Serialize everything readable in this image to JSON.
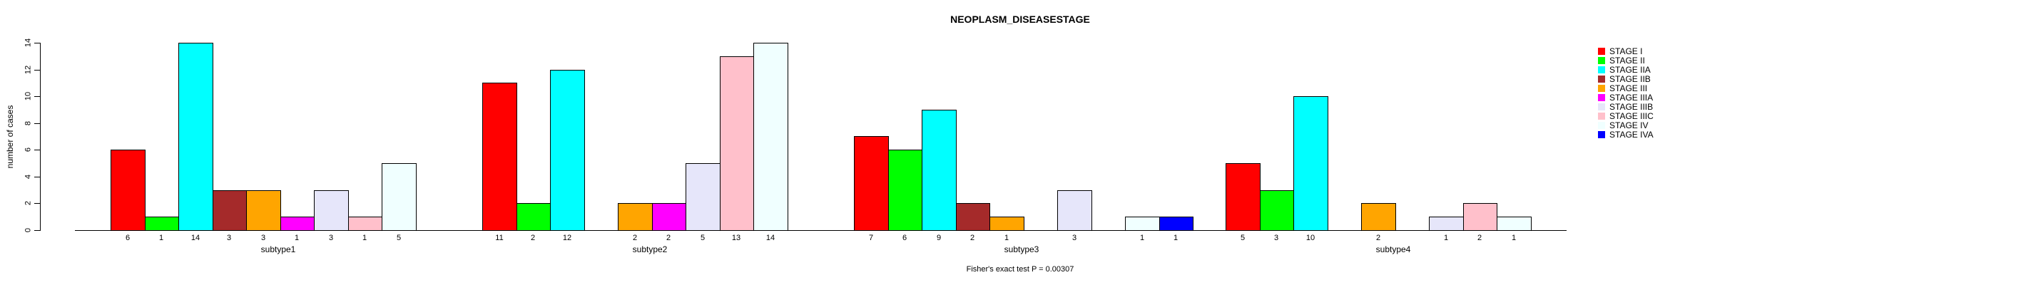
{
  "chart_data": {
    "type": "bar",
    "title": "NEOPLASM_DISEASESTAGE",
    "ylabel": "number of cases",
    "xlabel": "",
    "ylim": [
      0,
      14
    ],
    "yticks": [
      0,
      2,
      4,
      6,
      8,
      10,
      12,
      14
    ],
    "grid": false,
    "legend_position": "right",
    "bar_value_labels": "value printed under x-axis for each nonzero bar; zero-count stages leave an empty slot",
    "groups": [
      "subtype1",
      "subtype2",
      "subtype3",
      "subtype4"
    ],
    "series": [
      {
        "name": "STAGE I",
        "color": "#FF0000",
        "values": [
          6,
          11,
          7,
          5
        ]
      },
      {
        "name": "STAGE II",
        "color": "#00FF00",
        "values": [
          1,
          2,
          6,
          3
        ]
      },
      {
        "name": "STAGE IIA",
        "color": "#00FFFF",
        "values": [
          14,
          12,
          9,
          10
        ]
      },
      {
        "name": "STAGE IIB",
        "color": "#A52A2A",
        "values": [
          3,
          0,
          2,
          0
        ]
      },
      {
        "name": "STAGE III",
        "color": "#FFA500",
        "values": [
          3,
          2,
          1,
          2
        ]
      },
      {
        "name": "STAGE IIIA",
        "color": "#FF00FF",
        "values": [
          1,
          2,
          0,
          0
        ]
      },
      {
        "name": "STAGE IIIB",
        "color": "#E6E6FA",
        "values": [
          3,
          5,
          3,
          1
        ]
      },
      {
        "name": "STAGE IIIC",
        "color": "#FFC0CB",
        "values": [
          1,
          13,
          0,
          2
        ]
      },
      {
        "name": "STAGE IV",
        "color": "#F0FFFF",
        "values": [
          5,
          14,
          1,
          1
        ]
      },
      {
        "name": "STAGE IVA",
        "color": "#0000FF",
        "values": [
          0,
          0,
          1,
          0
        ]
      }
    ],
    "annotation": "Fisher's exact test P = 0.00307"
  }
}
